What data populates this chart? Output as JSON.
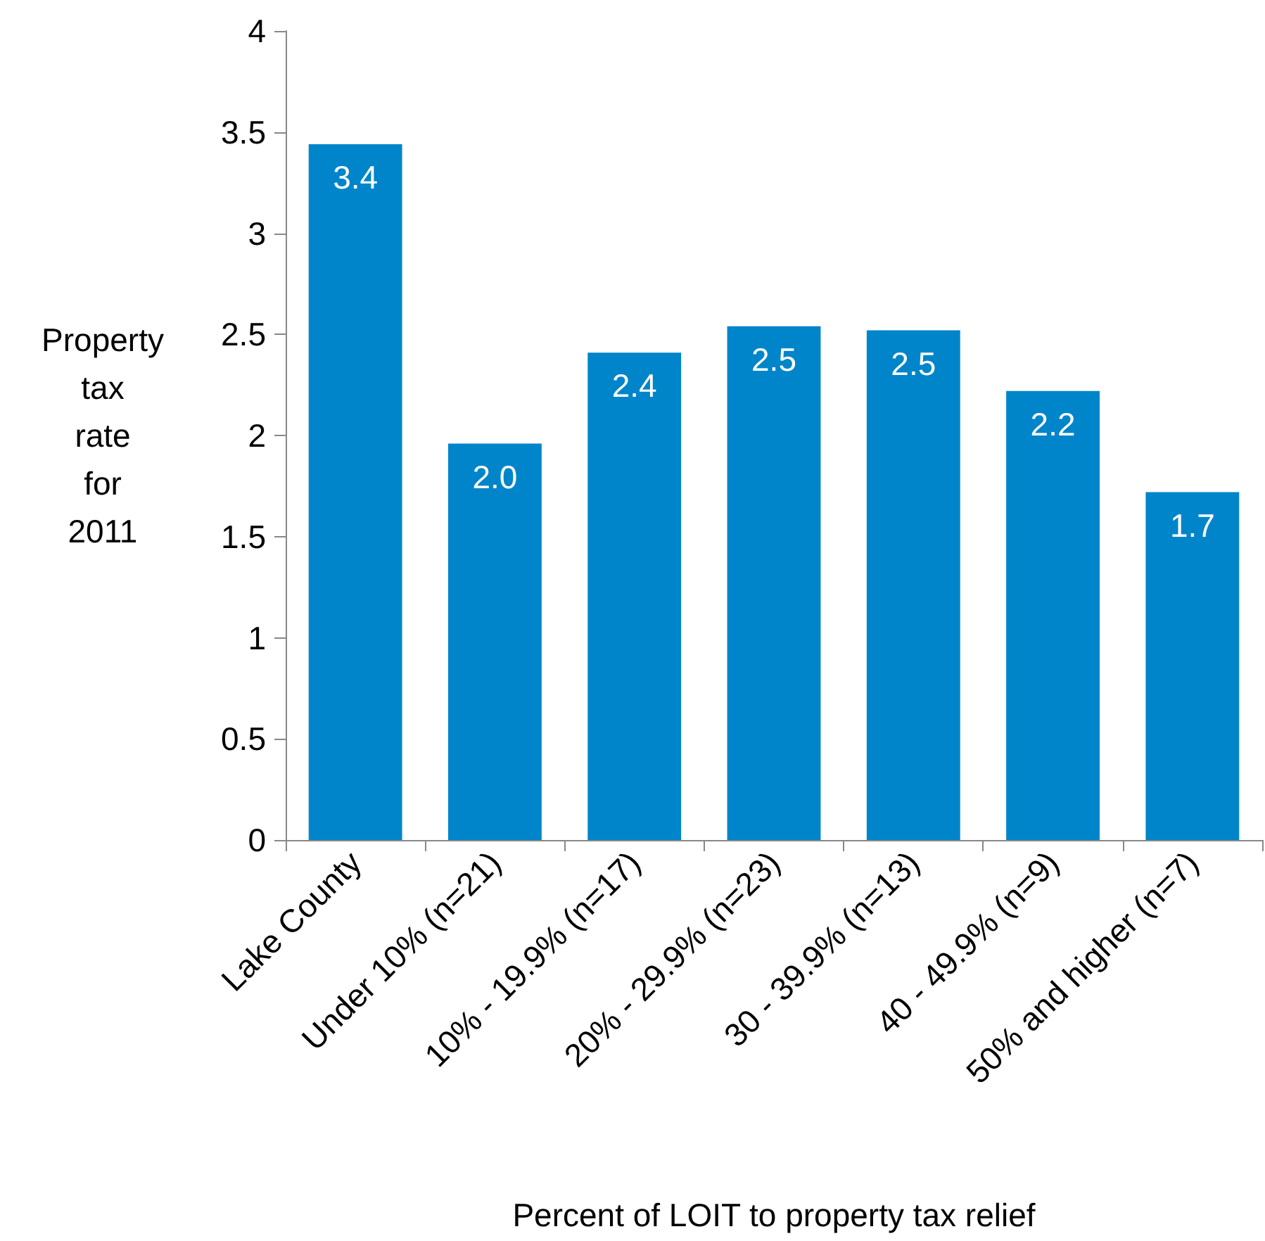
{
  "chart_data": {
    "type": "bar",
    "xlabel": "Percent of LOIT to property tax relief",
    "ylabel": "Property tax rate for 2011",
    "categories": [
      "Lake County",
      "Under 10% (n=21)",
      "10% - 19.9% (n=17)",
      "20% - 29.9% (n=23)",
      "30 - 39.9% (n=13)",
      "40 - 49.9% (n=9)",
      "50% and higher (n=7)"
    ],
    "values": [
      3.44,
      1.96,
      2.41,
      2.54,
      2.52,
      2.22,
      1.72
    ],
    "value_labels": [
      "3.4",
      "2.0",
      "2.4",
      "2.5",
      "2.5",
      "2.2",
      "1.7"
    ],
    "color": "#0085ca",
    "ylim": [
      0,
      4
    ],
    "yticks": [
      0,
      0.5,
      1,
      1.5,
      2,
      2.5,
      3,
      3.5,
      4
    ]
  }
}
